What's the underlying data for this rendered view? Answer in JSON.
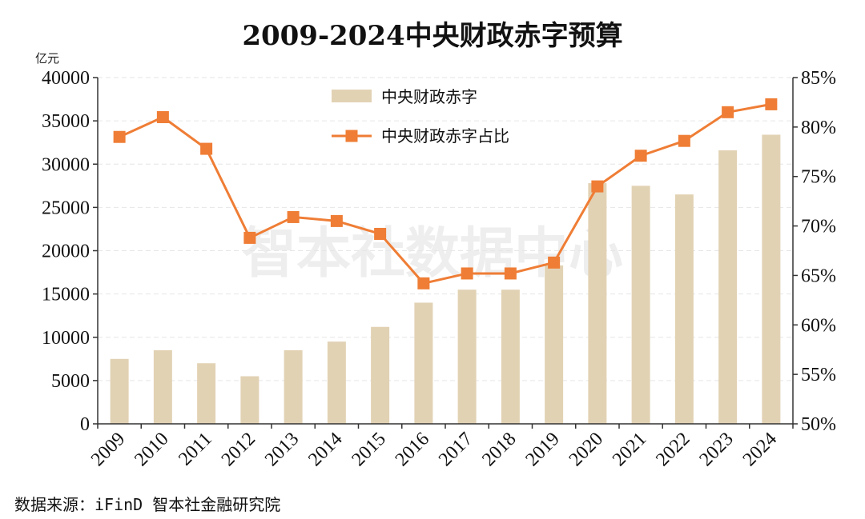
{
  "chart_data": {
    "type": "bar",
    "title": "2009-2024中央财政赤字预算",
    "categories": [
      "2009",
      "2010",
      "2011",
      "2012",
      "2013",
      "2014",
      "2015",
      "2016",
      "2017",
      "2018",
      "2019",
      "2020",
      "2021",
      "2022",
      "2023",
      "2024"
    ],
    "series": [
      {
        "name": "中央财政赤字",
        "type": "bar",
        "axis": "left",
        "color": "#e2d2b4",
        "values": [
          7500,
          8500,
          7000,
          5500,
          8500,
          9500,
          11200,
          14000,
          15500,
          15500,
          18300,
          27800,
          27500,
          26500,
          31600,
          33400
        ]
      },
      {
        "name": "中央财政赤字占比",
        "type": "line",
        "axis": "right",
        "color": "#ef7d35",
        "marker": "square",
        "values": [
          79.0,
          81.0,
          77.8,
          68.8,
          70.9,
          70.5,
          69.2,
          64.2,
          65.2,
          65.2,
          66.3,
          74.0,
          77.1,
          78.6,
          81.5,
          82.3
        ]
      }
    ],
    "y_left": {
      "unit_label": "亿元",
      "ylim": [
        0,
        40000
      ],
      "ticks": [
        "0",
        "5000",
        "10000",
        "15000",
        "20000",
        "25000",
        "30000",
        "35000",
        "40000"
      ]
    },
    "y_right": {
      "ylim": [
        50,
        85
      ],
      "ticks": [
        "50%",
        "55%",
        "60%",
        "65%",
        "70%",
        "75%",
        "80%",
        "85%"
      ]
    },
    "grid": "horizontal-dashed",
    "legend_position": "top-center"
  },
  "watermark": "智本社数据中心",
  "source": "数据来源：iFinD  智本社金融研究院"
}
